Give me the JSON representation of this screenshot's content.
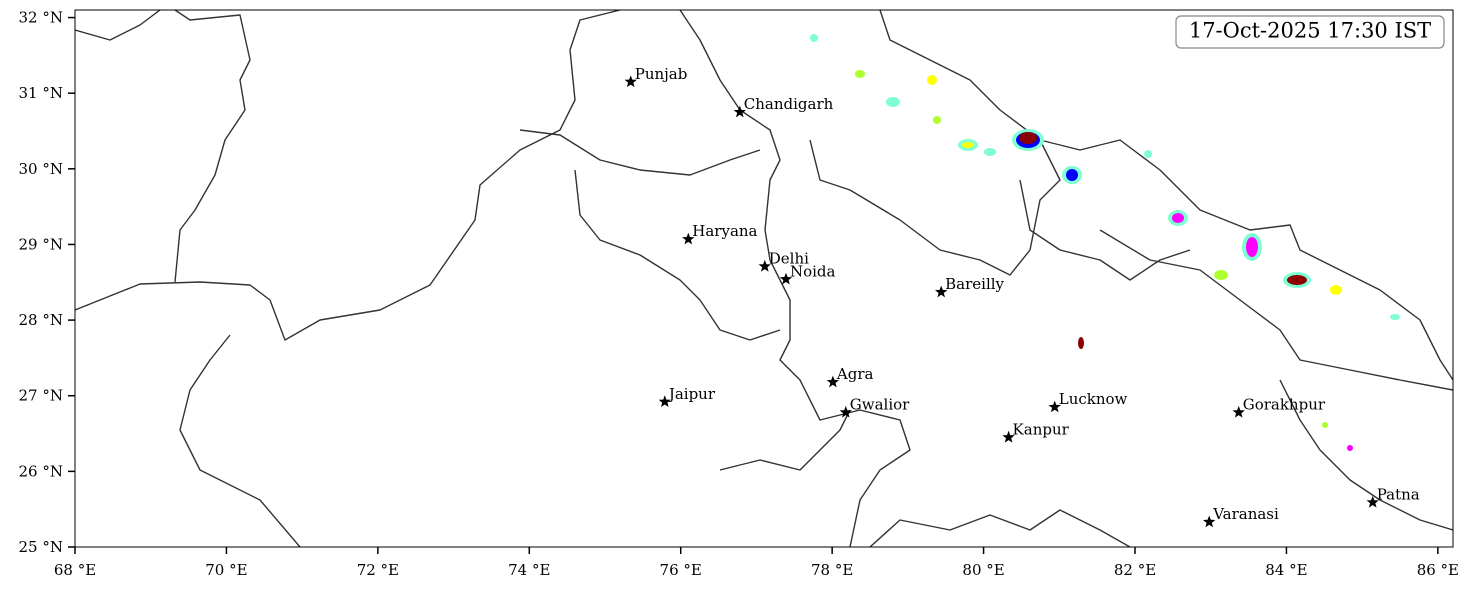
{
  "map": {
    "timestamp": "17-Oct-2025 17:30 IST",
    "xlim": [
      68,
      86.2
    ],
    "ylim": [
      25,
      32.1
    ],
    "xticks": [
      {
        "value": 68,
        "label": "68 °E"
      },
      {
        "value": 70,
        "label": "70 °E"
      },
      {
        "value": 72,
        "label": "72 °E"
      },
      {
        "value": 74,
        "label": "74 °E"
      },
      {
        "value": 76,
        "label": "76 °E"
      },
      {
        "value": 78,
        "label": "78 °E"
      },
      {
        "value": 80,
        "label": "80 °E"
      },
      {
        "value": 82,
        "label": "82 °E"
      },
      {
        "value": 84,
        "label": "84 °E"
      },
      {
        "value": 86,
        "label": "86 °E"
      }
    ],
    "yticks": [
      {
        "value": 25,
        "label": "25 °N"
      },
      {
        "value": 26,
        "label": "26 °N"
      },
      {
        "value": 27,
        "label": "27 °N"
      },
      {
        "value": 28,
        "label": "28 °N"
      },
      {
        "value": 29,
        "label": "29 °N"
      },
      {
        "value": 30,
        "label": "30 °N"
      },
      {
        "value": 31,
        "label": "31 °N"
      },
      {
        "value": 32,
        "label": "32 °N"
      }
    ],
    "cities": [
      {
        "name": "Punjab",
        "lon": 75.34,
        "lat": 31.15
      },
      {
        "name": "Chandigarh",
        "lon": 76.78,
        "lat": 30.75
      },
      {
        "name": "Haryana",
        "lon": 76.1,
        "lat": 29.07
      },
      {
        "name": "Delhi",
        "lon": 77.11,
        "lat": 28.71
      },
      {
        "name": "Noida",
        "lon": 77.39,
        "lat": 28.54
      },
      {
        "name": "Bareilly",
        "lon": 79.44,
        "lat": 28.37
      },
      {
        "name": "Agra",
        "lon": 78.01,
        "lat": 27.18
      },
      {
        "name": "Jaipur",
        "lon": 75.79,
        "lat": 26.92
      },
      {
        "name": "Gwalior",
        "lon": 78.18,
        "lat": 26.78
      },
      {
        "name": "Lucknow",
        "lon": 80.94,
        "lat": 26.85
      },
      {
        "name": "Kanpur",
        "lon": 80.33,
        "lat": 26.45
      },
      {
        "name": "Gorakhpur",
        "lon": 83.37,
        "lat": 26.78
      },
      {
        "name": "Varanasi",
        "lon": 82.98,
        "lat": 25.33
      },
      {
        "name": "Patna",
        "lon": 85.14,
        "lat": 25.59
      }
    ]
  }
}
